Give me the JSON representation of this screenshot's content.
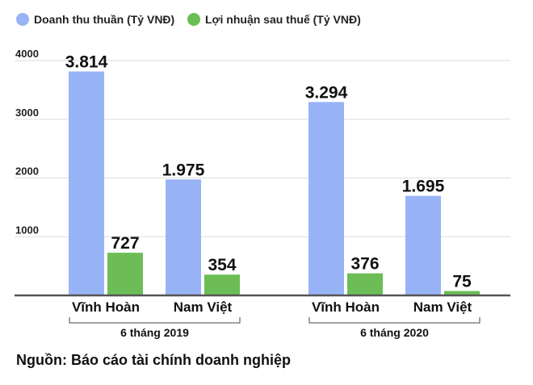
{
  "chart_data": {
    "type": "bar",
    "legend": {
      "placement": "top-left"
    },
    "series": [
      {
        "name": "Doanh thu thuần (Tỷ VNĐ)",
        "color": "#99b3f7"
      },
      {
        "name": "Lợi nhuận sau thuế (Tỷ VNĐ)",
        "color": "#6cbd56"
      }
    ],
    "groups": [
      {
        "label": "6 tháng 2019",
        "categories": [
          {
            "label": "Vĩnh Hoàn",
            "values": [
              3814,
              727
            ],
            "value_labels": [
              "3.814",
              "727"
            ]
          },
          {
            "label": "Nam Việt",
            "values": [
              1975,
              354
            ],
            "value_labels": [
              "1.975",
              "354"
            ]
          }
        ]
      },
      {
        "label": "6 tháng 2020",
        "categories": [
          {
            "label": "Vĩnh Hoàn",
            "values": [
              3294,
              376
            ],
            "value_labels": [
              "3.294",
              "376"
            ]
          },
          {
            "label": "Nam Việt",
            "values": [
              1695,
              75
            ],
            "value_labels": [
              "1.695",
              "75"
            ]
          }
        ]
      }
    ],
    "ylim": [
      0,
      4000
    ],
    "yticks": [
      1000,
      2000,
      3000,
      4000
    ],
    "ytick_labels": [
      "1000",
      "2000",
      "3000",
      "4000"
    ],
    "grid": true,
    "grid_color": "#dddddd",
    "axis_color": "#555555"
  },
  "source_note": "Nguồn: Báo cáo tài chính doanh nghiệp"
}
